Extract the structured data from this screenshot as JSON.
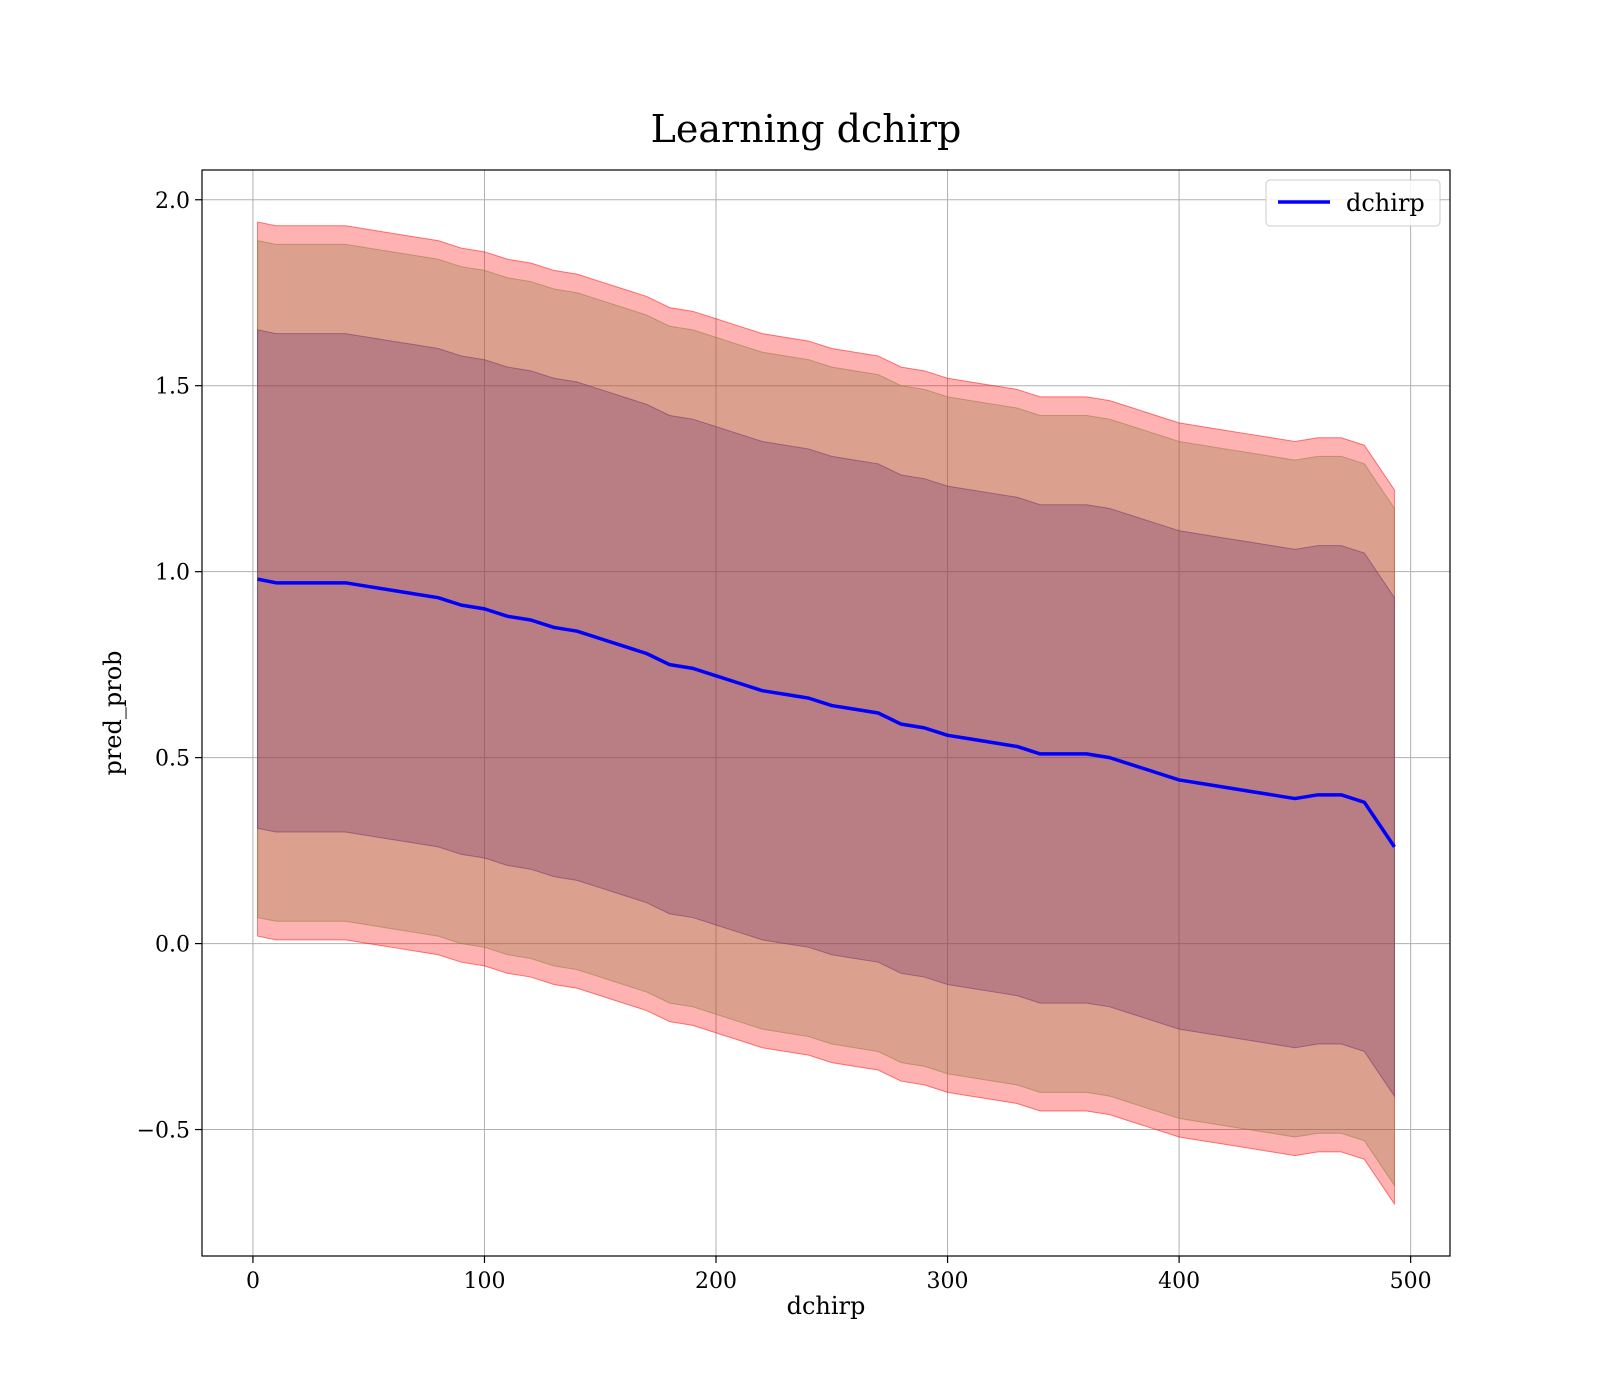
{
  "chart_data": {
    "type": "line",
    "title": "Learning dchirp",
    "xlabel": "dchirp",
    "ylabel": "pred_prob",
    "xlim": [
      -22,
      517
    ],
    "ylim": [
      -0.84,
      2.08
    ],
    "xticks": [
      0,
      100,
      200,
      300,
      400,
      500
    ],
    "yticks": [
      -0.5,
      0.0,
      0.5,
      1.0,
      1.5,
      2.0
    ],
    "xtick_labels": [
      "0",
      "100",
      "200",
      "300",
      "400",
      "500"
    ],
    "ytick_labels": [
      "−0.5",
      "0.0",
      "0.5",
      "1.0",
      "1.5",
      "2.0"
    ],
    "grid": true,
    "legend": {
      "position": "top-right",
      "entries": [
        "dchirp"
      ]
    },
    "colors": {
      "line": "#0000ff",
      "band_outer": "#ff0000",
      "band_middle": "#8c7a3a",
      "band_inner": "#6b2d6b"
    },
    "x": [
      2,
      10,
      20,
      30,
      40,
      50,
      60,
      70,
      80,
      90,
      100,
      110,
      120,
      130,
      140,
      150,
      160,
      170,
      180,
      190,
      200,
      210,
      220,
      230,
      240,
      250,
      260,
      270,
      280,
      290,
      300,
      310,
      320,
      330,
      340,
      350,
      360,
      370,
      380,
      390,
      400,
      410,
      420,
      430,
      440,
      450,
      460,
      470,
      480,
      493
    ],
    "series": [
      {
        "name": "dchirp",
        "values": [
          0.98,
          0.97,
          0.97,
          0.97,
          0.97,
          0.96,
          0.95,
          0.94,
          0.93,
          0.91,
          0.9,
          0.88,
          0.87,
          0.85,
          0.84,
          0.82,
          0.8,
          0.78,
          0.75,
          0.74,
          0.72,
          0.7,
          0.68,
          0.67,
          0.66,
          0.64,
          0.63,
          0.62,
          0.59,
          0.58,
          0.56,
          0.55,
          0.54,
          0.53,
          0.51,
          0.51,
          0.51,
          0.5,
          0.48,
          0.46,
          0.44,
          0.43,
          0.42,
          0.41,
          0.4,
          0.39,
          0.4,
          0.4,
          0.38,
          0.26
        ]
      }
    ],
    "bands": [
      {
        "name": "outer",
        "half_width": 0.96
      },
      {
        "name": "middle",
        "half_width": 0.91
      },
      {
        "name": "inner",
        "half_width": 0.67
      }
    ]
  }
}
